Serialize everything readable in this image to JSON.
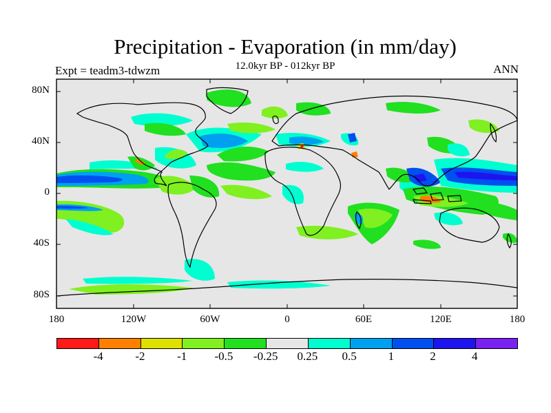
{
  "title": "Precipitation - Evaporation (in mm/day)",
  "subtitle": "12.0kyr BP - 012kyr BP",
  "left_label": "Expt = teadm3-tdwzm",
  "right_label": "ANN",
  "lat_ticks": [
    "80N",
    "40N",
    "0",
    "40S",
    "80S"
  ],
  "lon_ticks": [
    "180",
    "120W",
    "60W",
    "0",
    "60E",
    "120E",
    "180"
  ],
  "colorbar": {
    "colors": [
      "#ff1a1a",
      "#ff8000",
      "#e0e000",
      "#80f020",
      "#20e020",
      "#e6e6e6",
      "#00ffd0",
      "#00a0f0",
      "#0050f0",
      "#1e14f0",
      "#7a20f0"
    ],
    "labels": [
      "-4",
      "-2",
      "-1",
      "-0.5",
      "-0.25",
      "0.25",
      "0.5",
      "1",
      "2",
      "4"
    ]
  },
  "palette": {
    "background_gray": "#e6e6e6",
    "green": "#20e020",
    "light_green": "#80f020",
    "yellow": "#e0e000",
    "orange": "#ff8000",
    "red": "#ff1a1a",
    "cyan": "#00ffd0",
    "light_blue": "#00a0f0",
    "blue": "#0050f0",
    "dark_blue": "#1e14f0",
    "violet": "#7a20f0"
  }
}
